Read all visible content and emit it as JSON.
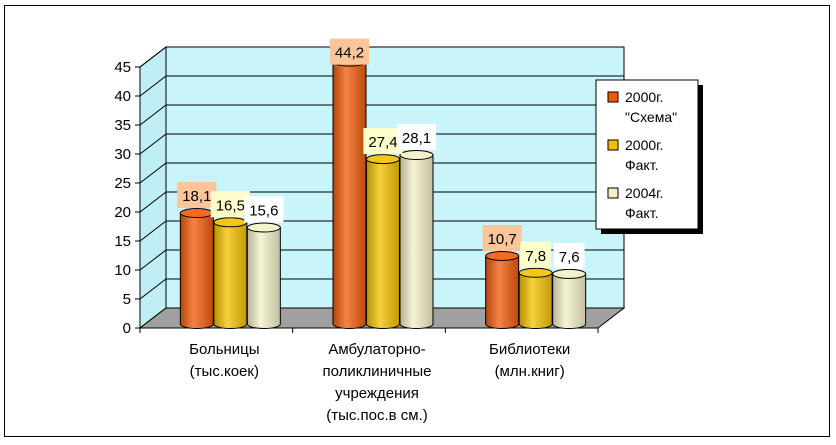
{
  "chart_data": {
    "type": "bar",
    "categories": [
      [
        "Больницы",
        "(тыс.коек)"
      ],
      [
        "Амбулаторно-",
        "поликлиничные",
        "учреждения",
        "(тыс.пос.в см.)"
      ],
      [
        "Библиотеки",
        "(млн.книг)"
      ]
    ],
    "series": [
      {
        "name": [
          "2000г.",
          "\"Схема\""
        ],
        "values": [
          18.1,
          44.2,
          10.7
        ],
        "labels": [
          "18,1",
          "44,2",
          "10,7"
        ],
        "color": "#f05a0a",
        "label_bg": "#fbc59a"
      },
      {
        "name": [
          "2000г.",
          "Факт."
        ],
        "values": [
          16.5,
          27.4,
          7.8
        ],
        "labels": [
          "16,5",
          "27,4",
          "7,8"
        ],
        "color": "#f2c000",
        "label_bg": "#ffffcc"
      },
      {
        "name": [
          "2004г.",
          "Факт."
        ],
        "values": [
          15.6,
          28.1,
          7.6
        ],
        "labels": [
          "15,6",
          "28,1",
          "7,6"
        ],
        "color": "#f3f0c8",
        "label_bg": "#ffffff"
      }
    ],
    "y_ticks": [
      "0",
      "5",
      "10",
      "15",
      "20",
      "25",
      "30",
      "35",
      "40",
      "45"
    ],
    "ylim": [
      0,
      45
    ],
    "grid": true,
    "plot_bg": "#c8f5fa",
    "floor_color": "#a0a0a0",
    "legend_position": "right"
  }
}
